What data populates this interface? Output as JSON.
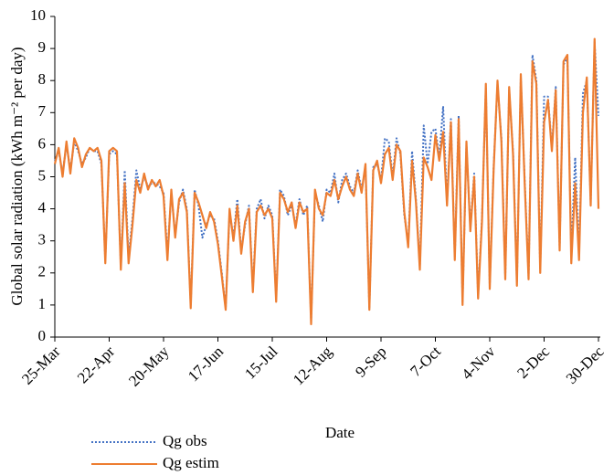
{
  "chart_data": {
    "type": "line",
    "xlabel": "Date",
    "ylabel": "Global solar radiation (kWh m⁻² per day)",
    "categories": [
      "25-Mar",
      null,
      null,
      null,
      null,
      null,
      null,
      null,
      null,
      null,
      null,
      null,
      null,
      null,
      "22-Apr",
      null,
      null,
      null,
      null,
      null,
      null,
      null,
      null,
      null,
      null,
      null,
      null,
      null,
      "20-May",
      null,
      null,
      null,
      null,
      null,
      null,
      null,
      null,
      null,
      null,
      null,
      null,
      null,
      "17-Jun",
      null,
      null,
      null,
      null,
      null,
      null,
      null,
      null,
      null,
      null,
      null,
      null,
      null,
      "15-Jul",
      null,
      null,
      null,
      null,
      null,
      null,
      null,
      null,
      null,
      null,
      null,
      null,
      null,
      "12-Aug",
      null,
      null,
      null,
      null,
      null,
      null,
      null,
      null,
      null,
      null,
      null,
      null,
      null,
      "9-Sep",
      null,
      null,
      null,
      null,
      null,
      null,
      null,
      null,
      null,
      null,
      null,
      null,
      null,
      "7-Oct",
      null,
      null,
      null,
      null,
      null,
      null,
      null,
      null,
      null,
      null,
      null,
      null,
      null,
      "4-Nov",
      null,
      null,
      null,
      null,
      null,
      null,
      null,
      null,
      null,
      null,
      null,
      null,
      null,
      "2-Dec",
      null,
      null,
      null,
      null,
      null,
      null,
      null,
      null,
      null,
      null,
      null,
      null,
      null,
      "30-Dec"
    ],
    "series": [
      {
        "name": "Qg obs",
        "color": "#4472c4",
        "dash": "dotted",
        "values": [
          5.5,
          5.8,
          5.1,
          6.0,
          5.2,
          6.1,
          5.8,
          5.4,
          5.6,
          5.9,
          5.8,
          5.8,
          5.4,
          2.4,
          5.7,
          5.8,
          5.7,
          2.2,
          5.2,
          2.5,
          3.7,
          5.2,
          4.6,
          5.0,
          4.7,
          4.8,
          4.8,
          4.7,
          4.5,
          2.6,
          4.5,
          3.2,
          4.2,
          4.6,
          4.0,
          1.0,
          4.6,
          4.1,
          3.1,
          3.5,
          3.8,
          3.7,
          3.0,
          2.0,
          0.9,
          3.9,
          3.1,
          4.3,
          2.7,
          3.5,
          4.1,
          1.5,
          4.0,
          4.3,
          3.7,
          4.1,
          3.8,
          1.2,
          4.6,
          4.4,
          3.8,
          4.1,
          3.5,
          4.3,
          3.8,
          4.1,
          0.5,
          4.5,
          4.1,
          3.6,
          4.6,
          4.5,
          5.1,
          4.2,
          4.9,
          5.1,
          4.7,
          4.5,
          5.2,
          4.6,
          5.3,
          0.9,
          5.3,
          5.4,
          4.9,
          6.2,
          6.1,
          5.0,
          6.2,
          5.7,
          3.8,
          2.9,
          5.8,
          4.3,
          2.2,
          6.6,
          5.4,
          6.4,
          6.5,
          5.6,
          7.2,
          4.2,
          6.8,
          2.5,
          6.9,
          1.1,
          6.0,
          3.4,
          5.1,
          1.3,
          3.7,
          7.8,
          1.6,
          5.3,
          7.9,
          6.2,
          1.9,
          7.7,
          5.8,
          1.7,
          8.1,
          4.9,
          1.9,
          8.8,
          8.0,
          2.1,
          7.5,
          7.5,
          5.9,
          7.8,
          2.8,
          8.5,
          8.7,
          2.6,
          5.6,
          2.6,
          7.6,
          8.0,
          4.2,
          9.2,
          6.9
        ]
      },
      {
        "name": "Qg estim",
        "color": "#ed7d31",
        "dash": "solid",
        "values": [
          5.4,
          5.9,
          5.0,
          6.1,
          5.1,
          6.2,
          5.9,
          5.3,
          5.7,
          5.9,
          5.8,
          5.9,
          5.5,
          2.3,
          5.8,
          5.9,
          5.8,
          2.1,
          4.8,
          2.3,
          3.5,
          4.9,
          4.5,
          5.1,
          4.6,
          4.9,
          4.7,
          4.9,
          4.4,
          2.4,
          4.6,
          3.1,
          4.3,
          4.5,
          3.9,
          0.9,
          4.5,
          4.2,
          3.8,
          3.4,
          3.9,
          3.6,
          2.9,
          1.9,
          0.85,
          4.0,
          3.0,
          4.1,
          2.6,
          3.6,
          4.0,
          1.4,
          3.9,
          4.1,
          3.8,
          4.0,
          3.7,
          1.1,
          4.5,
          4.3,
          3.9,
          4.2,
          3.4,
          4.2,
          3.9,
          4.0,
          0.4,
          4.6,
          4.0,
          3.8,
          4.5,
          4.4,
          4.9,
          4.3,
          4.7,
          5.0,
          4.6,
          4.4,
          5.1,
          4.5,
          5.4,
          0.85,
          5.2,
          5.5,
          4.8,
          5.7,
          5.9,
          4.9,
          6.0,
          5.8,
          3.9,
          2.8,
          5.5,
          4.2,
          2.1,
          5.6,
          5.3,
          4.9,
          6.3,
          5.5,
          6.4,
          4.1,
          6.7,
          2.4,
          6.8,
          1.0,
          6.1,
          3.3,
          5.0,
          1.2,
          3.6,
          7.9,
          1.5,
          5.2,
          8.0,
          6.1,
          1.8,
          7.8,
          5.7,
          1.6,
          8.2,
          4.8,
          1.8,
          8.6,
          7.9,
          2.0,
          6.7,
          7.4,
          5.8,
          7.7,
          2.7,
          8.6,
          8.8,
          2.3,
          4.8,
          2.4,
          7.0,
          8.1,
          4.1,
          9.3,
          4.0
        ]
      }
    ],
    "ylim": [
      0,
      10
    ],
    "yticks": [
      0,
      1,
      2,
      3,
      4,
      5,
      6,
      7,
      8,
      9,
      10
    ],
    "legend": "bottom-left"
  }
}
